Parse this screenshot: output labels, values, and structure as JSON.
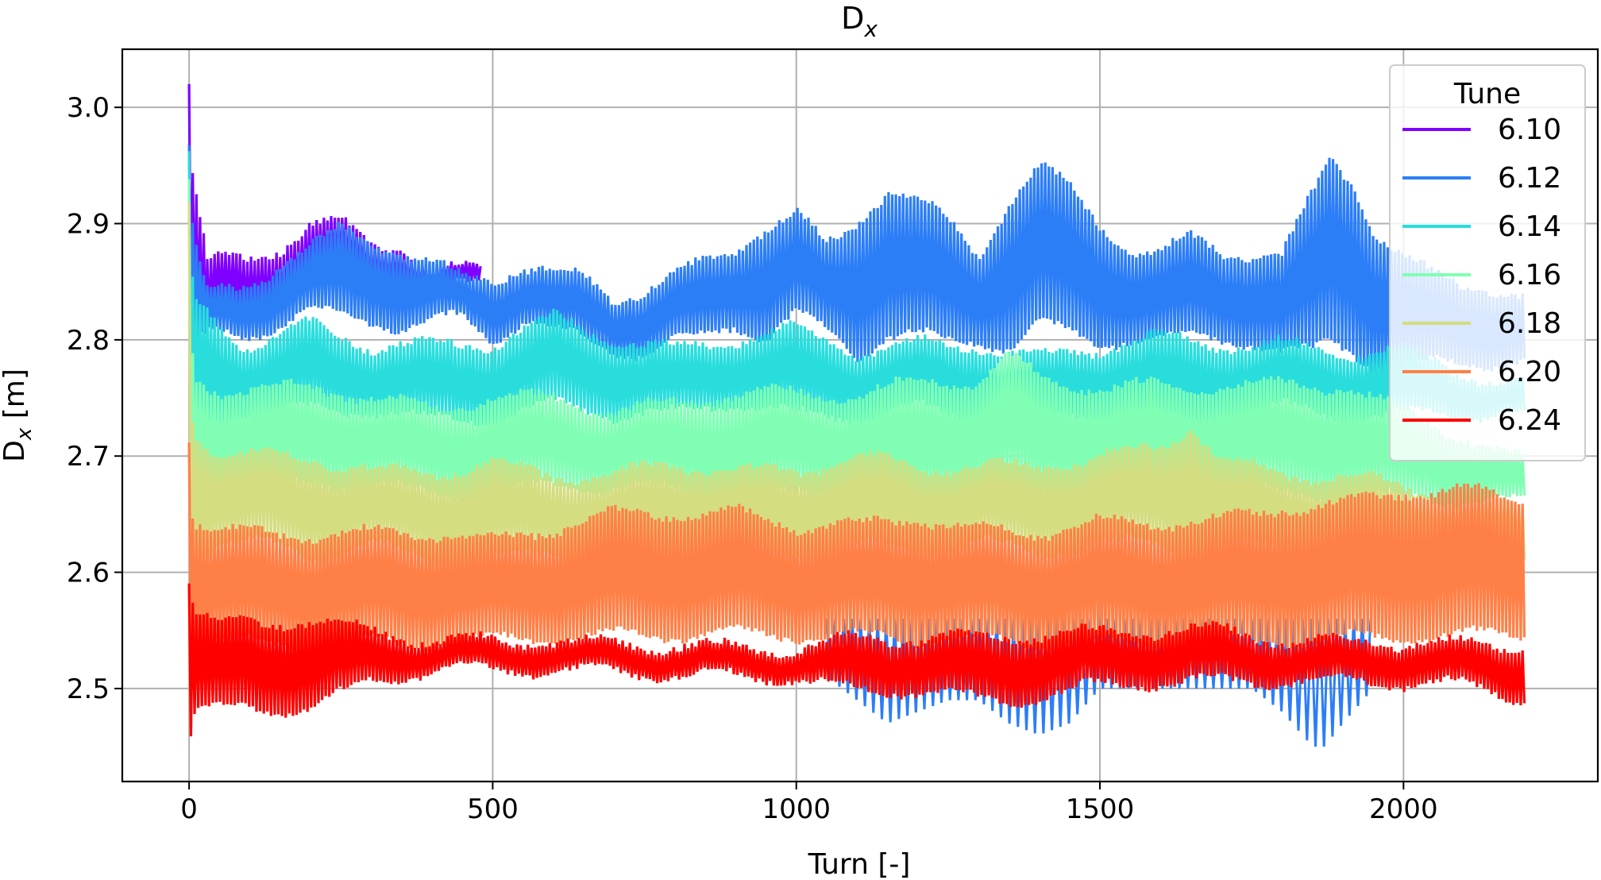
{
  "chart_data": {
    "type": "line",
    "title_main": "D",
    "title_sub": "x",
    "xlabel": "Turn [-]",
    "ylabel_main": "D",
    "ylabel_sub": "x",
    "ylabel_unit": " [m]",
    "xlim": [
      -110,
      2320
    ],
    "ylim": [
      2.42,
      3.05
    ],
    "xticks": [
      0,
      500,
      1000,
      1500,
      2000
    ],
    "xtick_labels": [
      "0",
      "500",
      "1000",
      "1500",
      "2000"
    ],
    "yticks": [
      2.5,
      2.6,
      2.7,
      2.8,
      2.9,
      3.0
    ],
    "ytick_labels": [
      "2.5",
      "2.6",
      "2.7",
      "2.8",
      "2.9",
      "3.0"
    ],
    "grid": true,
    "legend": {
      "title": "Tune",
      "placement": "top-right"
    },
    "series": [
      {
        "name": "6.10",
        "color": "#8000ff",
        "x": [
          0,
          5,
          10,
          20,
          30,
          50,
          100,
          150,
          200,
          250,
          300,
          350,
          400,
          450,
          480
        ],
        "upper": [
          3.02,
          2.95,
          2.93,
          2.9,
          2.87,
          2.87,
          2.87,
          2.88,
          2.9,
          2.9,
          2.88,
          2.88,
          2.86,
          2.86,
          2.86
        ],
        "lower": [
          2.82,
          2.82,
          2.81,
          2.8,
          2.8,
          2.82,
          2.81,
          2.82,
          2.84,
          2.85,
          2.83,
          2.84,
          2.84,
          2.84,
          2.84
        ]
      },
      {
        "name": "6.12",
        "color": "#2c7ef7",
        "x": [
          0,
          5,
          10,
          30,
          100,
          200,
          250,
          350,
          450,
          500,
          550,
          650,
          700,
          750,
          800,
          850,
          900,
          950,
          1000,
          1050,
          1100,
          1150,
          1200,
          1250,
          1300,
          1350,
          1400,
          1450,
          1500,
          1550,
          1600,
          1650,
          1700,
          1750,
          1800,
          1850,
          1880,
          1920,
          1950,
          2000,
          2050,
          2100,
          2150,
          2200
        ],
        "upper": [
          2.96,
          2.9,
          2.88,
          2.84,
          2.85,
          2.88,
          2.9,
          2.88,
          2.86,
          2.86,
          2.87,
          2.86,
          2.84,
          2.85,
          2.86,
          2.87,
          2.88,
          2.9,
          2.91,
          2.88,
          2.9,
          2.93,
          2.92,
          2.9,
          2.87,
          2.92,
          2.95,
          2.93,
          2.9,
          2.88,
          2.88,
          2.89,
          2.88,
          2.88,
          2.88,
          2.93,
          2.96,
          2.94,
          2.9,
          2.88,
          2.86,
          2.85,
          2.85,
          2.84
        ],
        "lower": [
          2.78,
          2.78,
          2.79,
          2.8,
          2.8,
          2.82,
          2.82,
          2.81,
          2.82,
          2.8,
          2.82,
          2.8,
          2.79,
          2.79,
          2.8,
          2.8,
          2.81,
          2.8,
          2.82,
          2.8,
          2.78,
          2.8,
          2.8,
          2.79,
          2.79,
          2.79,
          2.81,
          2.8,
          2.79,
          2.8,
          2.8,
          2.8,
          2.8,
          2.8,
          2.79,
          2.79,
          2.8,
          2.79,
          2.78,
          2.78,
          2.78,
          2.78,
          2.78,
          2.78
        ],
        "dip_x": [
          1050,
          1100,
          1150,
          1200,
          1250,
          1300,
          1350,
          1400,
          1450,
          1500,
          1550,
          1600,
          1650,
          1700,
          1750,
          1800,
          1850,
          1870,
          1900,
          1950
        ],
        "dip_lower": [
          2.51,
          2.49,
          2.47,
          2.48,
          2.49,
          2.49,
          2.47,
          2.46,
          2.47,
          2.5,
          2.5,
          2.5,
          2.5,
          2.5,
          2.5,
          2.48,
          2.45,
          2.45,
          2.47,
          2.5
        ]
      },
      {
        "name": "6.14",
        "color": "#2adddd",
        "x": [
          0,
          5,
          10,
          50,
          100,
          200,
          300,
          400,
          500,
          600,
          700,
          800,
          900,
          1000,
          1100,
          1200,
          1300,
          1400,
          1500,
          1600,
          1700,
          1800,
          1900,
          2000,
          2100,
          2200
        ],
        "upper": [
          2.96,
          2.86,
          2.84,
          2.82,
          2.8,
          2.82,
          2.8,
          2.8,
          2.8,
          2.82,
          2.8,
          2.79,
          2.8,
          2.81,
          2.79,
          2.8,
          2.8,
          2.79,
          2.8,
          2.81,
          2.8,
          2.8,
          2.79,
          2.79,
          2.77,
          2.76
        ],
        "lower": [
          2.73,
          2.73,
          2.73,
          2.73,
          2.74,
          2.74,
          2.74,
          2.73,
          2.73,
          2.74,
          2.73,
          2.73,
          2.74,
          2.73,
          2.73,
          2.74,
          2.73,
          2.73,
          2.74,
          2.73,
          2.73,
          2.74,
          2.73,
          2.73,
          2.73,
          2.73
        ]
      },
      {
        "name": "6.16",
        "color": "#80ffb4",
        "x": [
          0,
          5,
          10,
          50,
          100,
          200,
          300,
          400,
          500,
          600,
          700,
          800,
          900,
          1000,
          1100,
          1200,
          1300,
          1350,
          1400,
          1500,
          1600,
          1700,
          1800,
          1900,
          2000,
          2100,
          2200
        ],
        "upper": [
          2.94,
          2.8,
          2.77,
          2.76,
          2.76,
          2.76,
          2.75,
          2.74,
          2.75,
          2.75,
          2.74,
          2.75,
          2.76,
          2.76,
          2.76,
          2.77,
          2.77,
          2.79,
          2.77,
          2.76,
          2.76,
          2.76,
          2.76,
          2.76,
          2.74,
          2.72,
          2.7
        ],
        "lower": [
          2.66,
          2.66,
          2.67,
          2.67,
          2.67,
          2.67,
          2.67,
          2.66,
          2.66,
          2.67,
          2.67,
          2.67,
          2.66,
          2.67,
          2.67,
          2.66,
          2.67,
          2.67,
          2.66,
          2.67,
          2.66,
          2.67,
          2.66,
          2.66,
          2.66,
          2.66,
          2.66
        ]
      },
      {
        "name": "6.18",
        "color": "#d4dd80",
        "x": [
          0,
          5,
          10,
          50,
          100,
          200,
          300,
          400,
          500,
          600,
          700,
          800,
          900,
          1000,
          1100,
          1200,
          1300,
          1400,
          1500,
          1600,
          1650,
          1700,
          1800,
          1900,
          2000,
          2100,
          2200
        ],
        "upper": [
          2.92,
          2.74,
          2.72,
          2.7,
          2.7,
          2.7,
          2.69,
          2.69,
          2.7,
          2.69,
          2.69,
          2.7,
          2.69,
          2.69,
          2.7,
          2.69,
          2.69,
          2.69,
          2.7,
          2.71,
          2.73,
          2.7,
          2.69,
          2.69,
          2.68,
          2.67,
          2.66
        ],
        "lower": [
          2.61,
          2.61,
          2.61,
          2.62,
          2.62,
          2.61,
          2.62,
          2.61,
          2.61,
          2.62,
          2.61,
          2.62,
          2.62,
          2.61,
          2.62,
          2.61,
          2.62,
          2.61,
          2.62,
          2.62,
          2.61,
          2.62,
          2.62,
          2.61,
          2.62,
          2.61,
          2.61
        ]
      },
      {
        "name": "6.20",
        "color": "#ff8047",
        "x": [
          0,
          5,
          10,
          50,
          100,
          200,
          300,
          400,
          500,
          600,
          700,
          800,
          900,
          1000,
          1100,
          1200,
          1300,
          1400,
          1500,
          1600,
          1700,
          1800,
          1900,
          2000,
          2100,
          2200
        ],
        "upper": [
          2.72,
          2.66,
          2.65,
          2.64,
          2.64,
          2.64,
          2.64,
          2.64,
          2.63,
          2.64,
          2.65,
          2.65,
          2.65,
          2.64,
          2.64,
          2.65,
          2.64,
          2.64,
          2.65,
          2.65,
          2.65,
          2.66,
          2.66,
          2.67,
          2.67,
          2.66
        ],
        "lower": [
          2.54,
          2.54,
          2.54,
          2.54,
          2.54,
          2.54,
          2.54,
          2.54,
          2.54,
          2.54,
          2.54,
          2.54,
          2.54,
          2.54,
          2.54,
          2.54,
          2.54,
          2.54,
          2.54,
          2.54,
          2.54,
          2.54,
          2.54,
          2.54,
          2.54,
          2.54
        ]
      },
      {
        "name": "6.24",
        "color": "#ff0000",
        "x": [
          0,
          5,
          10,
          50,
          100,
          150,
          200,
          300,
          400,
          500,
          600,
          700,
          800,
          900,
          1000,
          1100,
          1200,
          1300,
          1400,
          1500,
          1600,
          1700,
          1800,
          1900,
          2000,
          2100,
          2200
        ],
        "upper": [
          2.6,
          2.58,
          2.57,
          2.56,
          2.56,
          2.56,
          2.56,
          2.55,
          2.54,
          2.54,
          2.54,
          2.54,
          2.54,
          2.54,
          2.54,
          2.55,
          2.55,
          2.55,
          2.55,
          2.55,
          2.55,
          2.55,
          2.54,
          2.54,
          2.54,
          2.54,
          2.54
        ],
        "lower": [
          2.45,
          2.47,
          2.48,
          2.48,
          2.48,
          2.48,
          2.48,
          2.5,
          2.51,
          2.51,
          2.51,
          2.51,
          2.51,
          2.51,
          2.51,
          2.5,
          2.5,
          2.49,
          2.49,
          2.5,
          2.5,
          2.5,
          2.5,
          2.5,
          2.5,
          2.5,
          2.49
        ]
      }
    ]
  }
}
